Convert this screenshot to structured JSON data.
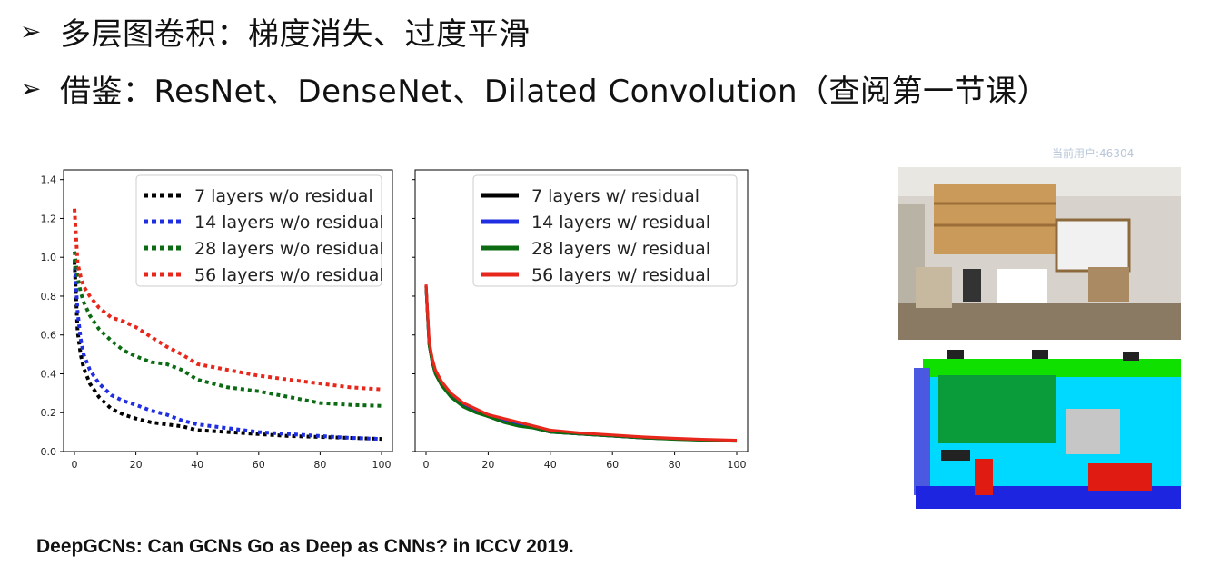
{
  "bullets": [
    {
      "marker": "➢",
      "text": "多层图卷积：梯度消失、过度平滑"
    },
    {
      "marker": "➢",
      "text": "借鉴：ResNet、DenseNet、Dilated Convolution（查阅第一节课）"
    }
  ],
  "watermark": "当前用户:46304",
  "citation": "DeepGCNs: Can GCNs Go as Deep as CNNs? in ICCV 2019.",
  "colors": {
    "black": "#000000",
    "blue": "#1f2ee0",
    "green": "#0b6b12",
    "red": "#e8271c"
  },
  "chart_data": [
    {
      "type": "line",
      "line_style": "dotted",
      "xlim": [
        0,
        100
      ],
      "ylim": [
        0,
        1.45
      ],
      "xticks": [
        "0",
        "20",
        "40",
        "60",
        "80",
        "100"
      ],
      "yticks": [
        "0.0",
        "0.2",
        "0.4",
        "0.6",
        "0.8",
        "1.0",
        "1.2",
        "1.4"
      ],
      "legend_position": "top-right",
      "x": [
        0,
        1,
        2,
        3,
        5,
        8,
        12,
        16,
        20,
        25,
        30,
        35,
        40,
        50,
        60,
        70,
        80,
        90,
        100
      ],
      "series": [
        {
          "name": "7 layers w/o residual",
          "color": "#000000",
          "values": [
            0.98,
            0.62,
            0.5,
            0.43,
            0.35,
            0.28,
            0.22,
            0.19,
            0.17,
            0.15,
            0.14,
            0.13,
            0.11,
            0.1,
            0.09,
            0.08,
            0.075,
            0.07,
            0.065
          ]
        },
        {
          "name": "14 layers w/o residual",
          "color": "#1f2ee0",
          "values": [
            0.99,
            0.72,
            0.58,
            0.5,
            0.42,
            0.35,
            0.29,
            0.26,
            0.24,
            0.21,
            0.19,
            0.16,
            0.14,
            0.12,
            0.1,
            0.09,
            0.08,
            0.07,
            0.065
          ]
        },
        {
          "name": "28 layers w/o residual",
          "color": "#0b6b12",
          "values": [
            1.03,
            0.9,
            0.82,
            0.77,
            0.7,
            0.63,
            0.57,
            0.52,
            0.49,
            0.46,
            0.45,
            0.42,
            0.37,
            0.33,
            0.31,
            0.28,
            0.25,
            0.24,
            0.235
          ]
        },
        {
          "name": "56 layers w/o residual",
          "color": "#e8271c",
          "values": [
            1.25,
            0.97,
            0.9,
            0.85,
            0.8,
            0.74,
            0.69,
            0.67,
            0.64,
            0.59,
            0.54,
            0.5,
            0.45,
            0.42,
            0.39,
            0.37,
            0.35,
            0.33,
            0.32
          ]
        }
      ]
    },
    {
      "type": "line",
      "line_style": "solid",
      "xlim": [
        0,
        100
      ],
      "ylim": [
        0,
        1.45
      ],
      "xticks": [
        "0",
        "20",
        "40",
        "60",
        "80",
        "100"
      ],
      "legend_position": "top-right",
      "x": [
        0,
        1,
        2,
        3,
        5,
        8,
        12,
        16,
        20,
        25,
        30,
        35,
        40,
        50,
        60,
        70,
        80,
        90,
        100
      ],
      "series": [
        {
          "name": "7 layers w/ residual",
          "color": "#000000",
          "values": [
            0.85,
            0.55,
            0.46,
            0.4,
            0.34,
            0.29,
            0.24,
            0.21,
            0.18,
            0.16,
            0.14,
            0.12,
            0.1,
            0.09,
            0.08,
            0.07,
            0.065,
            0.06,
            0.055
          ]
        },
        {
          "name": "14 layers w/ residual",
          "color": "#1f2ee0",
          "values": [
            0.85,
            0.56,
            0.47,
            0.41,
            0.35,
            0.29,
            0.24,
            0.21,
            0.19,
            0.16,
            0.14,
            0.12,
            0.1,
            0.09,
            0.08,
            0.07,
            0.065,
            0.06,
            0.055
          ]
        },
        {
          "name": "28 layers w/ residual",
          "color": "#0b6b12",
          "values": [
            0.85,
            0.55,
            0.46,
            0.4,
            0.34,
            0.28,
            0.23,
            0.2,
            0.18,
            0.15,
            0.13,
            0.12,
            0.1,
            0.09,
            0.08,
            0.07,
            0.063,
            0.058,
            0.053
          ]
        },
        {
          "name": "56 layers w/ residual",
          "color": "#e8271c",
          "values": [
            0.86,
            0.57,
            0.48,
            0.42,
            0.36,
            0.3,
            0.25,
            0.22,
            0.19,
            0.17,
            0.15,
            0.13,
            0.11,
            0.095,
            0.085,
            0.075,
            0.068,
            0.062,
            0.058
          ]
        }
      ]
    }
  ]
}
